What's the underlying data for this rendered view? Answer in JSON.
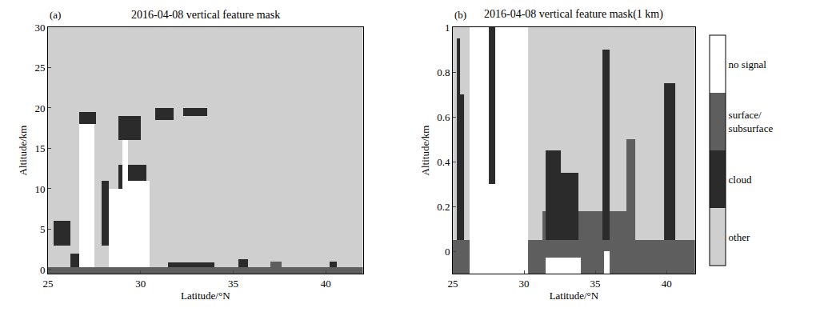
{
  "chart_data": [
    {
      "type": "heatmap",
      "panel": "(a)",
      "title": "2016-04-08 vertical feature mask",
      "xlabel": "Latitude/°N",
      "ylabel": "Altitude/km",
      "xlim": [
        25,
        42
      ],
      "ylim": [
        -0.5,
        30
      ],
      "xticks": [
        25,
        30,
        35,
        40
      ],
      "yticks": [
        0,
        5,
        10,
        15,
        20,
        25,
        30
      ],
      "background": 0,
      "features": [
        {
          "value": 2,
          "x": [
            25,
            42
          ],
          "y": [
            -0.5,
            0.3
          ]
        },
        {
          "value": 1,
          "x": [
            25.3,
            26.2
          ],
          "y": [
            3,
            6
          ]
        },
        {
          "value": 1,
          "x": [
            26.2,
            26.7
          ],
          "y": [
            0.3,
            2
          ]
        },
        {
          "value": 3,
          "x": [
            26.7,
            27.5
          ],
          "y": [
            0.3,
            18
          ]
        },
        {
          "value": 1,
          "x": [
            26.7,
            27.6
          ],
          "y": [
            18,
            19.5
          ]
        },
        {
          "value": 1,
          "x": [
            27.9,
            28.3
          ],
          "y": [
            3,
            11
          ]
        },
        {
          "value": 3,
          "x": [
            28.3,
            29.0
          ],
          "y": [
            0.3,
            10
          ]
        },
        {
          "value": 3,
          "x": [
            29.0,
            29.3
          ],
          "y": [
            0.3,
            16
          ]
        },
        {
          "value": 3,
          "x": [
            29.3,
            30.5
          ],
          "y": [
            0.3,
            11
          ]
        },
        {
          "value": 1,
          "x": [
            28.8,
            29.0
          ],
          "y": [
            10,
            13
          ]
        },
        {
          "value": 1,
          "x": [
            28.8,
            30.0
          ],
          "y": [
            16,
            19
          ]
        },
        {
          "value": 1,
          "x": [
            29.3,
            30.3
          ],
          "y": [
            11,
            13
          ]
        },
        {
          "value": 1,
          "x": [
            30.8,
            31.8
          ],
          "y": [
            18.5,
            20
          ]
        },
        {
          "value": 1,
          "x": [
            32.3,
            33.6
          ],
          "y": [
            19,
            20
          ]
        },
        {
          "value": 1,
          "x": [
            31.5,
            34
          ],
          "y": [
            0.3,
            0.9
          ]
        },
        {
          "value": 1,
          "x": [
            35.3,
            35.8
          ],
          "y": [
            0.3,
            1.3
          ]
        },
        {
          "value": 2,
          "x": [
            37,
            37.6
          ],
          "y": [
            0.3,
            1
          ]
        },
        {
          "value": 1,
          "x": [
            40.2,
            40.6
          ],
          "y": [
            0.3,
            1
          ]
        }
      ]
    },
    {
      "type": "heatmap",
      "panel": "(b)",
      "title": "2016-04-08 vertical feature mask(1 km)",
      "xlabel": "Latitude/°N",
      "ylabel": "Altitude/km",
      "xlim": [
        25,
        42
      ],
      "ylim": [
        -0.1,
        1
      ],
      "xticks": [
        25,
        30,
        35,
        40
      ],
      "yticks": [
        0,
        0.2,
        0.4,
        0.6,
        0.8,
        1
      ],
      "background": 0,
      "features": [
        {
          "value": 2,
          "x": [
            25,
            42
          ],
          "y": [
            -0.1,
            0.05
          ]
        },
        {
          "value": 1,
          "x": [
            25.3,
            25.5
          ],
          "y": [
            0.05,
            0.95
          ]
        },
        {
          "value": 1,
          "x": [
            25.5,
            25.8
          ],
          "y": [
            0.05,
            0.7
          ]
        },
        {
          "value": 3,
          "x": [
            26.2,
            30.3
          ],
          "y": [
            -0.1,
            1
          ]
        },
        {
          "value": 1,
          "x": [
            27.5,
            28.0
          ],
          "y": [
            0.3,
            1
          ]
        },
        {
          "value": 2,
          "x": [
            31.3,
            35.5
          ],
          "y": [
            0.05,
            0.18
          ]
        },
        {
          "value": 1,
          "x": [
            31.5,
            32.6
          ],
          "y": [
            0.05,
            0.45
          ]
        },
        {
          "value": 1,
          "x": [
            32.6,
            33.8
          ],
          "y": [
            0.05,
            0.35
          ]
        },
        {
          "value": 3,
          "x": [
            31.5,
            34
          ],
          "y": [
            -0.1,
            -0.03
          ]
        },
        {
          "value": 1,
          "x": [
            35.5,
            36.0
          ],
          "y": [
            0.05,
            0.9
          ]
        },
        {
          "value": 3,
          "x": [
            35.6,
            36.0
          ],
          "y": [
            -0.1,
            0
          ]
        },
        {
          "value": 2,
          "x": [
            36.0,
            37.2
          ],
          "y": [
            0.05,
            0.18
          ]
        },
        {
          "value": 2,
          "x": [
            37.2,
            37.8
          ],
          "y": [
            0.05,
            0.5
          ]
        },
        {
          "value": 1,
          "x": [
            39.8,
            40.6
          ],
          "y": [
            0.05,
            0.75
          ]
        }
      ]
    }
  ],
  "colorbar": {
    "range": [
      -0.5,
      3.5
    ],
    "ticks": [
      {
        "value": 0,
        "label": "other"
      },
      {
        "value": 1,
        "label": "cloud"
      },
      {
        "value": 2,
        "label": "surface/subsurface"
      },
      {
        "value": 3,
        "label": "no signal"
      }
    ],
    "colors": [
      "#cfcfcf",
      "#2b2b2b",
      "#5e5e5e",
      "#ffffff"
    ]
  }
}
